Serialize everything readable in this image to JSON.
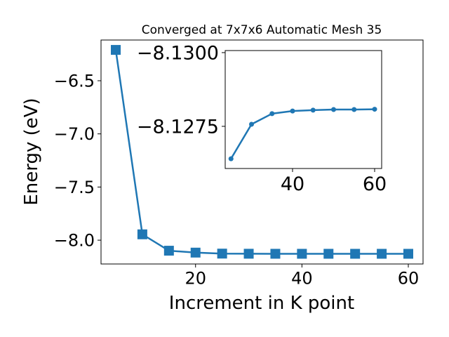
{
  "chart_data": [
    {
      "type": "line",
      "title": "Converged at 7x7x6 Automatic Mesh 35",
      "xlabel": "Increment in K point",
      "ylabel": "Energy (eV)",
      "x": [
        5,
        10,
        15,
        20,
        25,
        30,
        35,
        40,
        45,
        50,
        55,
        60
      ],
      "values": [
        -6.21,
        -7.945,
        -8.099,
        -8.117,
        -8.1264,
        -8.12757,
        -8.12793,
        -8.12802,
        -8.12805,
        -8.12807,
        -8.12807,
        -8.12808
      ],
      "color": "#1f77b4",
      "marker": "square",
      "xlim": [
        2.23,
        62.77
      ],
      "xticks": [
        20,
        40,
        60
      ],
      "ylim": [
        -8.224,
        -6.117
      ],
      "yticks": [
        {
          "value": -8.0,
          "label": "−8.0"
        },
        {
          "value": -7.5,
          "label": "−7.5"
        },
        {
          "value": -7.0,
          "label": "−7.0"
        },
        {
          "value": -6.5,
          "label": "−6.5"
        }
      ]
    },
    {
      "type": "line",
      "x": [
        25,
        30,
        35,
        40,
        45,
        50,
        55,
        60
      ],
      "values": [
        -8.1264,
        -8.12757,
        -8.12793,
        -8.12802,
        -8.12805,
        -8.12807,
        -8.12807,
        -8.12808
      ],
      "color": "#1f77b4",
      "marker": "circle",
      "xlim": [
        23.59,
        61.71
      ],
      "xticks": [
        40,
        60
      ],
      "ylim": [
        -8.12607,
        -8.13007
      ],
      "yticks": [
        {
          "value": -8.1275,
          "label": "−8.1275"
        },
        {
          "value": -8.13,
          "label": "−8.1300"
        }
      ]
    }
  ]
}
